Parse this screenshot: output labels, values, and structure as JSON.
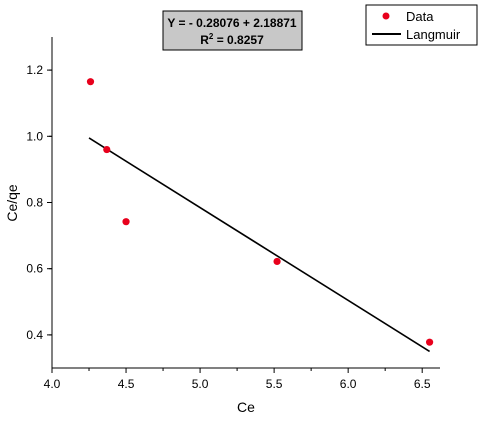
{
  "chart_data": {
    "type": "scatter",
    "xlabel": "Ce",
    "ylabel": "Ce/qe",
    "xlim": [
      4.0,
      6.6
    ],
    "ylim": [
      0.3,
      1.3
    ],
    "x_ticks": [
      "4.0",
      "4.5",
      "5.0",
      "5.5",
      "6.0",
      "6.5"
    ],
    "y_ticks": [
      "0.4",
      "0.6",
      "0.8",
      "1.0",
      "1.2"
    ],
    "series": [
      {
        "name": "Data",
        "color": "#e8001c",
        "x": [
          4.26,
          4.37,
          4.5,
          5.52,
          6.55
        ],
        "y": [
          1.165,
          0.96,
          0.742,
          0.622,
          0.378
        ]
      }
    ],
    "fit": {
      "name": "Langmuir",
      "color": "#000000",
      "x": [
        4.25,
        6.55
      ],
      "y": [
        0.995,
        0.35
      ]
    },
    "equation": {
      "line1": "Y = - 0.28076 + 2.18871",
      "r2_prefix": "R",
      "r2_sup": "2",
      "r2_suffix": " = 0.8257"
    },
    "legend": {
      "position": "top-right",
      "entries": [
        "Data",
        "Langmuir"
      ]
    }
  }
}
